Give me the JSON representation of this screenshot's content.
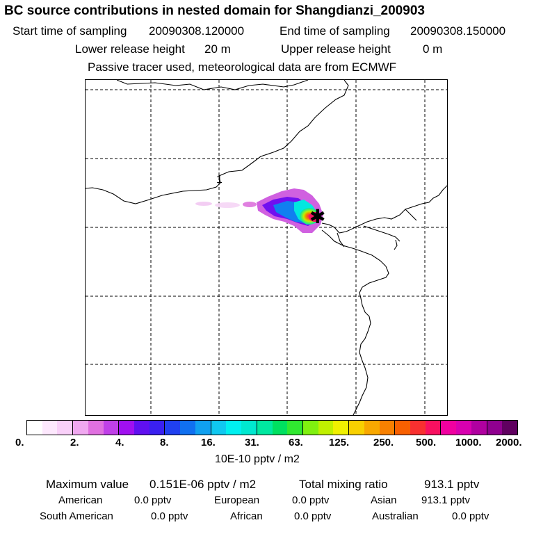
{
  "header": {
    "title": "BC  source contributions in nested domain for Shangdianzi_200903",
    "start_label": "Start time of sampling",
    "start_value": "20090308.120000",
    "end_label": "End time of sampling",
    "end_value": "20090308.150000",
    "lower_label": "Lower release height",
    "lower_value": "20 m",
    "upper_label": "Upper release height",
    "upper_value": "0 m",
    "note": "Passive tracer used, meteorological data are from ECMWF"
  },
  "map": {
    "contour_label": "1",
    "receptor_symbol": "✱"
  },
  "colorbar": {
    "ticks": [
      "0.",
      "2.",
      "4.",
      "8.",
      "16.",
      "31.",
      "63.",
      "125.",
      "250.",
      "500.",
      "1000.",
      "2000."
    ],
    "unit": "10E-10 pptv / m2",
    "colors": [
      "#ffffff",
      "#fde8fd",
      "#f9d0f9",
      "#f0a8f0",
      "#e070e0",
      "#c040e8",
      "#a010f0",
      "#6010f0",
      "#3a20f0",
      "#2040f0",
      "#1070f0",
      "#10a0f0",
      "#10c8f0",
      "#00f0f0",
      "#00e8d0",
      "#00e8a0",
      "#00e060",
      "#30e830",
      "#80f010",
      "#c0f000",
      "#f0f000",
      "#f8d000",
      "#f8a800",
      "#f88000",
      "#f86000",
      "#f83030",
      "#f81060",
      "#f000a0",
      "#d800b0",
      "#b000a0",
      "#900090",
      "#600060"
    ]
  },
  "stats": {
    "max_label": "Maximum value",
    "max_value": "0.151E-06 pptv / m2",
    "total_label": "Total mixing ratio",
    "total_value": "913.1 pptv",
    "regions": [
      {
        "name": "American",
        "value": "0.0 pptv"
      },
      {
        "name": "European",
        "value": "0.0 pptv"
      },
      {
        "name": "Asian",
        "value": "913.1 pptv"
      },
      {
        "name": "South American",
        "value": "0.0 pptv"
      },
      {
        "name": "African",
        "value": "0.0 pptv"
      },
      {
        "name": "Australian",
        "value": "0.0 pptv"
      }
    ]
  }
}
